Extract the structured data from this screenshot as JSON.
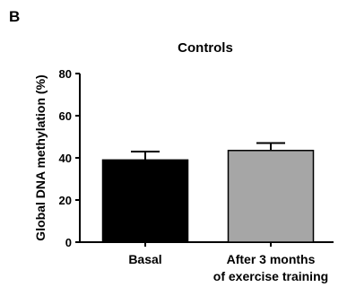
{
  "panel_label": "B",
  "chart_data": {
    "type": "bar",
    "title": "Controls",
    "xlabel": "",
    "ylabel": "Global  DNA methylation (%)",
    "ylim": [
      0,
      80
    ],
    "yticks": [
      0,
      20,
      40,
      60,
      80
    ],
    "grid": false,
    "categories": [
      [
        "Basal"
      ],
      [
        "After 3 months",
        "of exercise training"
      ]
    ],
    "values": [
      39,
      43.5
    ],
    "errors": [
      4,
      3.5
    ],
    "colors": [
      "#000000",
      "#a6a6a6"
    ]
  }
}
